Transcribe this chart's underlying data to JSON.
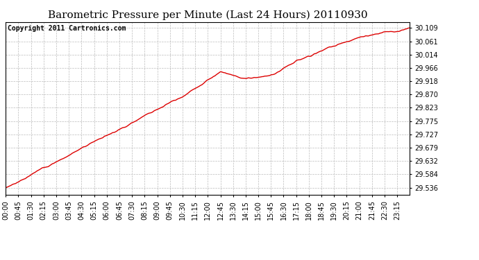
{
  "title": "Barometric Pressure per Minute (Last 24 Hours) 20110930",
  "copyright_text": "Copyright 2011 Cartronics.com",
  "line_color": "#dd0000",
  "background_color": "#ffffff",
  "plot_bg_color": "#ffffff",
  "grid_color": "#bbbbbb",
  "yticks": [
    29.536,
    29.584,
    29.632,
    29.679,
    29.727,
    29.775,
    29.823,
    29.87,
    29.918,
    29.966,
    30.014,
    30.061,
    30.109
  ],
  "ylim": [
    29.51,
    30.13
  ],
  "xtick_labels": [
    "00:00",
    "00:45",
    "01:30",
    "02:15",
    "03:00",
    "03:45",
    "04:30",
    "05:15",
    "06:00",
    "06:45",
    "07:30",
    "08:15",
    "09:00",
    "09:45",
    "10:30",
    "11:15",
    "12:00",
    "12:45",
    "13:30",
    "14:15",
    "15:00",
    "15:45",
    "16:30",
    "17:15",
    "18:00",
    "18:45",
    "19:30",
    "20:15",
    "21:00",
    "21:45",
    "22:30",
    "23:15"
  ],
  "title_fontsize": 11,
  "copyright_fontsize": 7,
  "tick_fontsize": 7,
  "line_width": 1.0,
  "key_points_x": [
    0,
    180,
    300,
    420,
    500,
    570,
    630,
    765,
    810,
    855,
    900,
    960,
    1080,
    1200,
    1350,
    1415,
    1439
  ],
  "key_points_y": [
    29.536,
    29.63,
    29.695,
    29.76,
    29.81,
    29.85,
    29.87,
    29.966,
    29.955,
    29.942,
    29.948,
    29.953,
    30.014,
    30.061,
    30.095,
    30.105,
    30.109
  ]
}
